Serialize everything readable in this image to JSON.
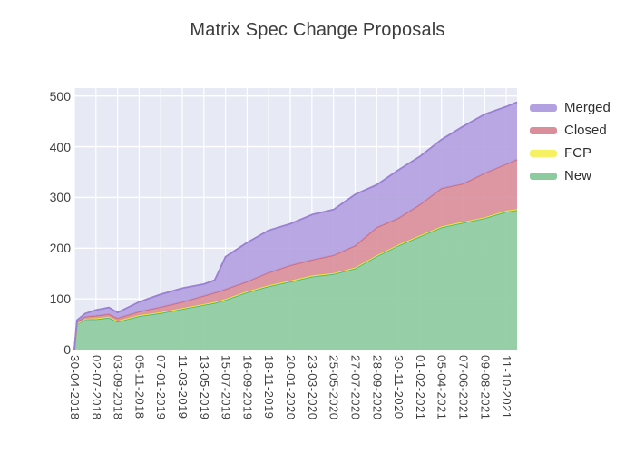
{
  "title": "Matrix Spec Change Proposals",
  "legend": {
    "items": [
      {
        "label": "Merged",
        "color": "#b3a0e0"
      },
      {
        "label": "Closed",
        "color": "#da8e9a"
      },
      {
        "label": "FCP",
        "color": "#f5f163"
      },
      {
        "label": "New",
        "color": "#8ccb9e"
      }
    ]
  },
  "chart_data": {
    "type": "area",
    "stacked": true,
    "title": "Matrix Spec Change Proposals",
    "xlabel": "",
    "ylabel": "",
    "ylim": [
      0,
      515
    ],
    "yticks": [
      0,
      100,
      200,
      300,
      400,
      500
    ],
    "grid": true,
    "legend_position": "right",
    "plot_bg": "#e7eaf4",
    "grid_color": "#ffffff",
    "tick_labels": [
      "30-04-2018",
      "02-07-2018",
      "03-09-2018",
      "05-11-2018",
      "07-01-2019",
      "11-03-2019",
      "13-05-2019",
      "15-07-2019",
      "16-09-2019",
      "18-11-2019",
      "20-01-2020",
      "23-03-2020",
      "25-05-2020",
      "27-07-2020",
      "28-09-2020",
      "30-11-2020",
      "01-02-2021",
      "05-04-2021",
      "07-06-2021",
      "09-08-2021",
      "11-10-2021"
    ],
    "x_positions": [
      0,
      0.12,
      0.5,
      1,
      1.6,
      2,
      3,
      4,
      5,
      6,
      6.5,
      7,
      8,
      9,
      10,
      11,
      12,
      13,
      14,
      15,
      16,
      17,
      18,
      19,
      20,
      20.5
    ],
    "series": [
      {
        "name": "New",
        "fill": "#8ccb9e",
        "line": "#4bb583",
        "values": [
          0,
          50,
          60,
          60,
          63,
          55,
          66,
          72,
          80,
          88,
          92,
          98,
          113,
          125,
          134,
          144,
          149,
          160,
          184,
          205,
          223,
          241,
          250,
          259,
          272,
          275
        ]
      },
      {
        "name": "FCP",
        "fill": "#f5f163",
        "line": "#e9e53a",
        "values": [
          0,
          1,
          1,
          2,
          2,
          2,
          2,
          2,
          2,
          2,
          2,
          2,
          2,
          2,
          2,
          2,
          2,
          2,
          2,
          2,
          2,
          2,
          2,
          2,
          2,
          2
        ]
      },
      {
        "name": "Closed",
        "fill": "#da8e9a",
        "line": "#d06a79",
        "values": [
          0,
          4,
          4,
          5,
          5,
          5,
          7,
          10,
          12,
          16,
          18,
          19,
          19,
          25,
          30,
          31,
          35,
          43,
          55,
          52,
          61,
          75,
          75,
          87,
          92,
          98
        ]
      },
      {
        "name": "Merged",
        "fill": "#b3a0e0",
        "line": "#9a7fd4",
        "values": [
          0,
          3,
          6,
          11,
          13,
          11,
          19,
          25,
          27,
          23,
          25,
          64,
          77,
          83,
          82,
          89,
          90,
          101,
          84,
          95,
          95,
          96,
          113,
          116,
          113,
          113
        ]
      }
    ]
  }
}
